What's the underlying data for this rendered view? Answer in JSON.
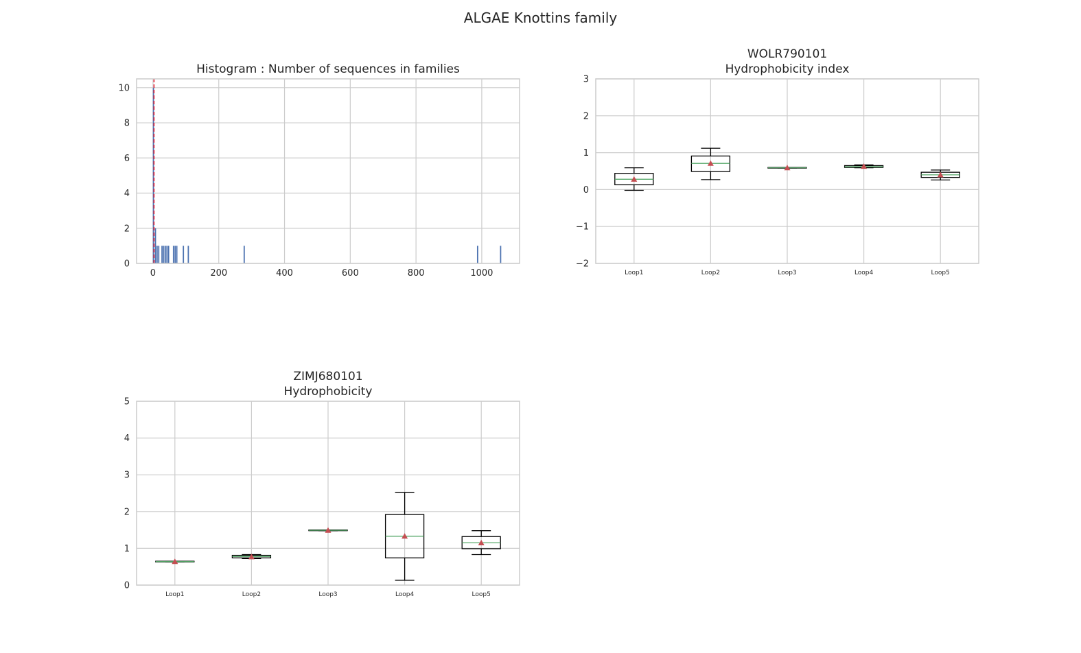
{
  "figure": {
    "suptitle": "ALGAE Knottins family"
  },
  "colors": {
    "grid": "#cccccc",
    "frame": "#cccccc",
    "bar": "#4c72b0",
    "vline": "#e8192c",
    "box": "#000000",
    "median": "#55a868",
    "mean_marker": "#c44e52"
  },
  "chart_data": [
    {
      "type": "bar",
      "subtype": "histogram",
      "title": "Histogram : Number of sequences in families",
      "xlabel": "",
      "ylabel": "",
      "xlim": [
        -50,
        1115
      ],
      "ylim": [
        0,
        10.5
      ],
      "xticks": [
        0,
        200,
        400,
        600,
        800,
        1000
      ],
      "yticks": [
        0,
        2,
        4,
        6,
        8,
        10
      ],
      "grid": true,
      "bin_width": 5,
      "bins": [
        {
          "x": 2,
          "count": 10
        },
        {
          "x": 8,
          "count": 2
        },
        {
          "x": 13,
          "count": 1
        },
        {
          "x": 18,
          "count": 1
        },
        {
          "x": 28,
          "count": 1
        },
        {
          "x": 33,
          "count": 1
        },
        {
          "x": 38,
          "count": 1
        },
        {
          "x": 43,
          "count": 1
        },
        {
          "x": 48,
          "count": 1
        },
        {
          "x": 63,
          "count": 1
        },
        {
          "x": 68,
          "count": 1
        },
        {
          "x": 73,
          "count": 1
        },
        {
          "x": 93,
          "count": 1
        },
        {
          "x": 108,
          "count": 1
        },
        {
          "x": 278,
          "count": 1
        },
        {
          "x": 988,
          "count": 1
        },
        {
          "x": 1058,
          "count": 1
        }
      ],
      "vline": {
        "x": 3,
        "style": "dashed"
      }
    },
    {
      "type": "box",
      "title": "WOLR790101\nHydrophobicity index",
      "xlabel": "",
      "ylabel": "",
      "ylim": [
        -2,
        3
      ],
      "yticks": [
        -2,
        -1,
        0,
        1,
        2,
        3
      ],
      "grid": true,
      "categories": [
        "Loop1",
        "Loop2",
        "Loop3",
        "Loop4",
        "Loop5"
      ],
      "boxes": [
        {
          "whisker_low": -0.02,
          "q1": 0.13,
          "median": 0.28,
          "q3": 0.44,
          "whisker_high": 0.59,
          "mean": 0.28
        },
        {
          "whisker_low": 0.27,
          "q1": 0.49,
          "median": 0.71,
          "q3": 0.91,
          "whisker_high": 1.12,
          "mean": 0.71
        },
        {
          "whisker_low": 0.585,
          "q1": 0.585,
          "median": 0.59,
          "q3": 0.6,
          "whisker_high": 0.6,
          "mean": 0.59
        },
        {
          "whisker_low": 0.59,
          "q1": 0.6,
          "median": 0.62,
          "q3": 0.65,
          "whisker_high": 0.67,
          "mean": 0.63
        },
        {
          "whisker_low": 0.26,
          "q1": 0.33,
          "median": 0.4,
          "q3": 0.47,
          "whisker_high": 0.53,
          "mean": 0.4
        }
      ]
    },
    {
      "type": "box",
      "title": "ZIMJ680101\nHydrophobicity",
      "xlabel": "",
      "ylabel": "",
      "ylim": [
        0,
        5
      ],
      "yticks": [
        0,
        1,
        2,
        3,
        4,
        5
      ],
      "grid": true,
      "categories": [
        "Loop1",
        "Loop2",
        "Loop3",
        "Loop4",
        "Loop5"
      ],
      "boxes": [
        {
          "whisker_low": 0.63,
          "q1": 0.63,
          "median": 0.64,
          "q3": 0.65,
          "whisker_high": 0.65,
          "mean": 0.64
        },
        {
          "whisker_low": 0.72,
          "q1": 0.74,
          "median": 0.78,
          "q3": 0.81,
          "whisker_high": 0.83,
          "mean": 0.77
        },
        {
          "whisker_low": 1.48,
          "q1": 1.48,
          "median": 1.49,
          "q3": 1.5,
          "whisker_high": 1.5,
          "mean": 1.49
        },
        {
          "whisker_low": 0.13,
          "q1": 0.74,
          "median": 1.33,
          "q3": 1.92,
          "whisker_high": 2.52,
          "mean": 1.33
        },
        {
          "whisker_low": 0.83,
          "q1": 0.99,
          "median": 1.15,
          "q3": 1.32,
          "whisker_high": 1.48,
          "mean": 1.15
        }
      ]
    }
  ]
}
